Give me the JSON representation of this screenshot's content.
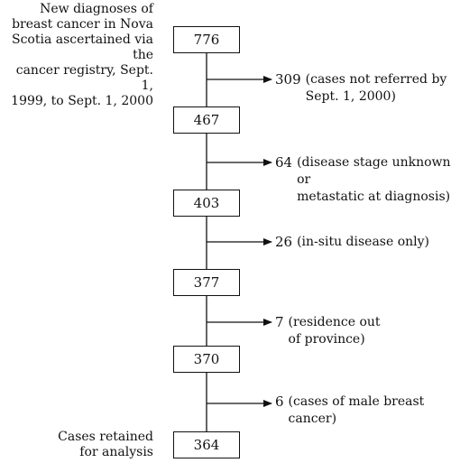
{
  "source_label": "New diagnoses of\nbreast cancer in Nova\nScotia ascertained via the\ncancer registry, Sept. 1,\n1999, to Sept. 1, 2000",
  "final_label": "Cases retained\nfor analysis",
  "boxes": [
    "776",
    "467",
    "403",
    "377",
    "370",
    "364"
  ],
  "exclusions": [
    {
      "count": "309",
      "reason": "(cases not referred by\nSept. 1, 2000)"
    },
    {
      "count": "64",
      "reason": "(disease stage unknown or\nmetastatic at diagnosis)"
    },
    {
      "count": "26",
      "reason": "(in-situ disease only)"
    },
    {
      "count": "7",
      "reason": "(residence out\nof province)"
    },
    {
      "count": "6",
      "reason": "(cases of male breast\ncancer)"
    }
  ],
  "colors": {
    "line": "#111111",
    "text": "#111111"
  }
}
